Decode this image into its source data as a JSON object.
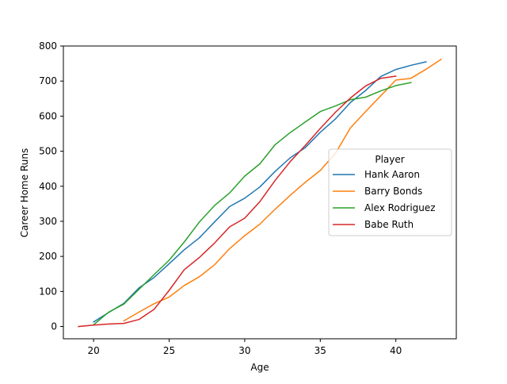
{
  "chart_data": {
    "type": "line",
    "title": "",
    "xlabel": "Age",
    "ylabel": "Career Home Runs",
    "xlim": [
      18,
      44
    ],
    "ylim": [
      -35,
      800
    ],
    "xticks": [
      20,
      25,
      30,
      35,
      40
    ],
    "yticks": [
      0,
      100,
      200,
      300,
      400,
      500,
      600,
      700,
      800
    ],
    "grid": false,
    "legend": {
      "title": "Player",
      "placement": "center-right"
    },
    "series": [
      {
        "name": "Hank Aaron",
        "color": "#1f77b4",
        "x": [
          20,
          21,
          22,
          23,
          24,
          25,
          26,
          27,
          28,
          29,
          30,
          31,
          32,
          33,
          34,
          35,
          36,
          37,
          38,
          39,
          40,
          41,
          42
        ],
        "y": [
          13,
          40,
          66,
          110,
          140,
          179,
          219,
          253,
          298,
          342,
          366,
          398,
          442,
          481,
          510,
          554,
          592,
          639,
          673,
          713,
          733,
          745,
          755
        ]
      },
      {
        "name": "Barry Bonds",
        "color": "#ff7f0e",
        "x": [
          22,
          23,
          24,
          25,
          26,
          27,
          28,
          29,
          30,
          31,
          32,
          33,
          34,
          35,
          36,
          37,
          38,
          39,
          40,
          41,
          42,
          43
        ],
        "y": [
          16,
          41,
          65,
          84,
          117,
          142,
          176,
          222,
          259,
          292,
          334,
          374,
          411,
          445,
          494,
          567,
          613,
          658,
          703,
          708,
          734,
          762
        ]
      },
      {
        "name": "Alex Rodriguez",
        "color": "#2ca02c",
        "x": [
          20,
          21,
          22,
          23,
          24,
          25,
          26,
          27,
          28,
          29,
          30,
          31,
          32,
          33,
          34,
          35,
          36,
          37,
          38,
          39,
          40,
          41
        ],
        "y": [
          5,
          41,
          64,
          106,
          148,
          189,
          241,
          298,
          345,
          381,
          429,
          464,
          518,
          553,
          583,
          613,
          629,
          647,
          654,
          672,
          687,
          696
        ]
      },
      {
        "name": "Babe Ruth",
        "color": "#d62728",
        "x": [
          19,
          20,
          21,
          22,
          23,
          24,
          25,
          26,
          27,
          28,
          29,
          30,
          31,
          32,
          33,
          34,
          35,
          36,
          37,
          38,
          39,
          40
        ],
        "y": [
          0,
          4,
          7,
          9,
          20,
          49,
          103,
          162,
          197,
          238,
          284,
          309,
          356,
          416,
          470,
          516,
          565,
          611,
          652,
          686,
          708,
          714
        ]
      }
    ]
  }
}
